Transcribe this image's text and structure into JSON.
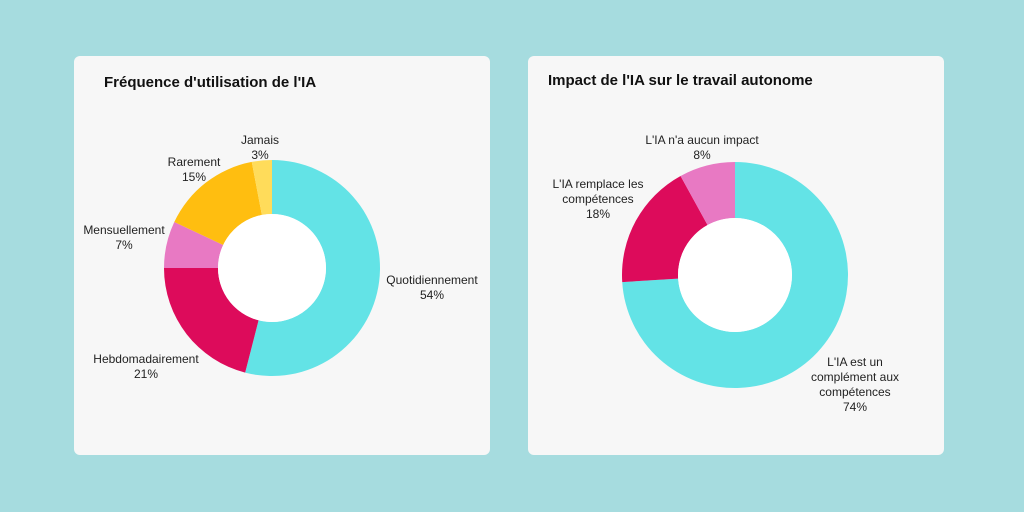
{
  "chart_data": [
    {
      "type": "pie",
      "donut": true,
      "title": "Fréquence d'utilisation de l'IA",
      "slices": [
        {
          "label": "Quotidiennement",
          "value": 54,
          "display": "54%",
          "color": "#63e3e6"
        },
        {
          "label": "Hebdomadairement",
          "value": 21,
          "display": "21%",
          "color": "#dd0b5b"
        },
        {
          "label": "Mensuellement",
          "value": 7,
          "display": "7%",
          "color": "#e879c3"
        },
        {
          "label": "Rarement",
          "value": 15,
          "display": "15%",
          "color": "#ffbe10"
        },
        {
          "label": "Jamais",
          "value": 3,
          "display": "3%",
          "color": "#ffdc5a"
        }
      ]
    },
    {
      "type": "pie",
      "donut": true,
      "title": "Impact de l'IA sur le travail autonome",
      "slices": [
        {
          "label": "L'IA est un\ncomplément aux\ncompétences",
          "value": 74,
          "display": "74%",
          "color": "#63e3e6"
        },
        {
          "label": "L'IA remplace les\ncompétences",
          "value": 18,
          "display": "18%",
          "color": "#dd0b5b"
        },
        {
          "label": "L'IA n'a aucun impact",
          "value": 8,
          "display": "8%",
          "color": "#e879c3"
        }
      ]
    }
  ],
  "colors": {
    "background": "#a6dcdf",
    "card": "#f7f7f7"
  }
}
